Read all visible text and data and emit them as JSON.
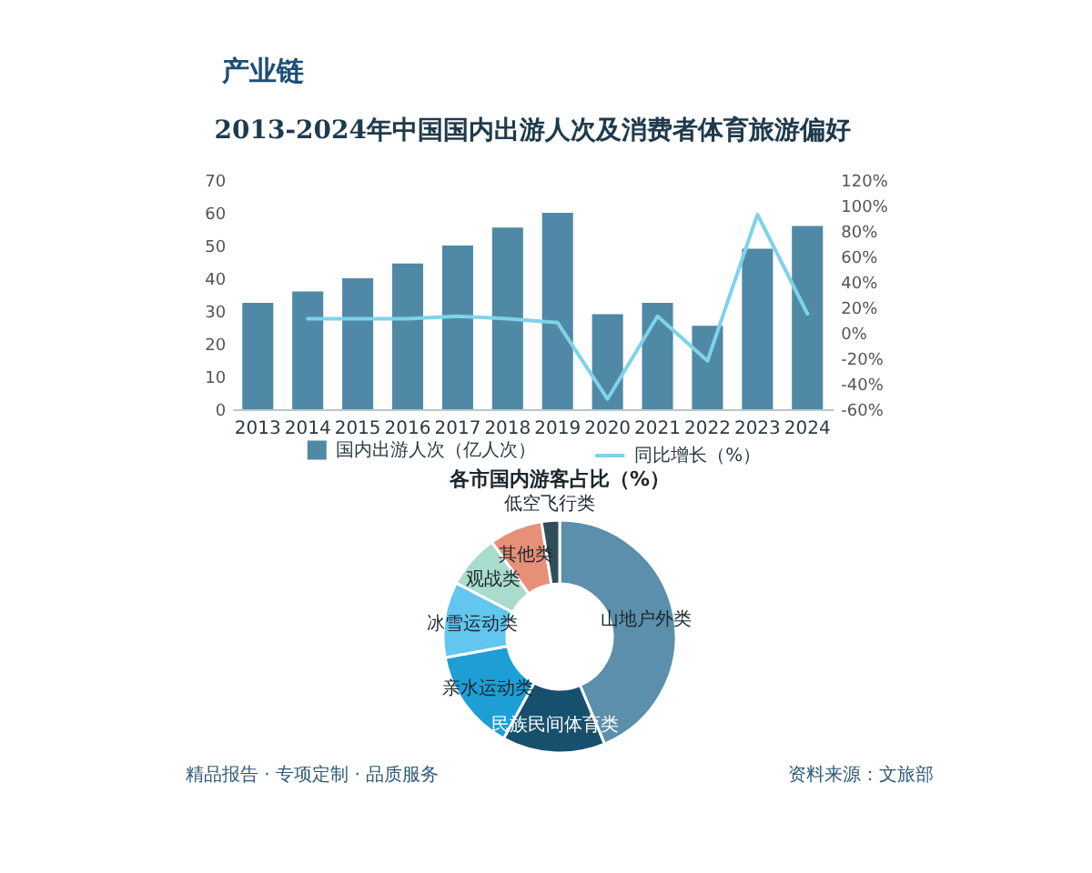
{
  "chart_data": [
    {
      "type": "bar",
      "title": "2013-2024年中国国内出游人次及消费者体育旅游偏好",
      "annotations": [
        "产业链"
      ],
      "categories": [
        "2013",
        "2014",
        "2015",
        "2016",
        "2017",
        "2018",
        "2019",
        "2020",
        "2021",
        "2022",
        "2023",
        "2024"
      ],
      "series": [
        {
          "name": "国内出游人次（亿人次）",
          "type": "bar",
          "color": "#4f89a6",
          "values": [
            32.5,
            36,
            40,
            44.5,
            50,
            55.5,
            60,
            29,
            32.5,
            25.5,
            49,
            56
          ]
        },
        {
          "name": "同比增长（%）",
          "type": "line",
          "axis": "y2",
          "color": "#7fd2ea",
          "values": [
            null,
            11,
            11,
            11,
            13,
            11,
            8,
            -52,
            13,
            -22,
            93,
            15
          ]
        }
      ],
      "ylim": [
        0,
        70
      ],
      "yticks": [
        0,
        10,
        20,
        30,
        40,
        50,
        60,
        70
      ],
      "y2lim": [
        -60,
        120
      ],
      "y2ticks": [
        {
          "value": -60,
          "label": "-60%"
        },
        {
          "value": -40,
          "label": "-40%"
        },
        {
          "value": -20,
          "label": "-20%"
        },
        {
          "value": 0,
          "label": "0%"
        },
        {
          "value": 20,
          "label": "20%"
        },
        {
          "value": 40,
          "label": "40%"
        },
        {
          "value": 60,
          "label": "60%"
        },
        {
          "value": 80,
          "label": "80%"
        },
        {
          "value": 100,
          "label": "100%"
        },
        {
          "value": 120,
          "label": "120%"
        }
      ],
      "legend": "bottom"
    },
    {
      "type": "donut",
      "title": "各市国内游客占比（%）",
      "categories": [
        "山地户外类",
        "民族民间体育类",
        "亲水运动类",
        "冰雪运动类",
        "观战类",
        "其他类",
        "低空飞行类"
      ],
      "values": [
        43.7,
        14.3,
        14.1,
        10.5,
        7.5,
        7.4,
        2.5
      ],
      "colors": [
        "#5b8fab",
        "#17506d",
        "#1d9fd6",
        "#62c6ee",
        "#a9dccd",
        "#e88f77",
        "#2f4e59"
      ],
      "annotations": [
        "精品报告 · 专项定制 · 品质服务",
        "资料来源：文旅部"
      ]
    }
  ]
}
